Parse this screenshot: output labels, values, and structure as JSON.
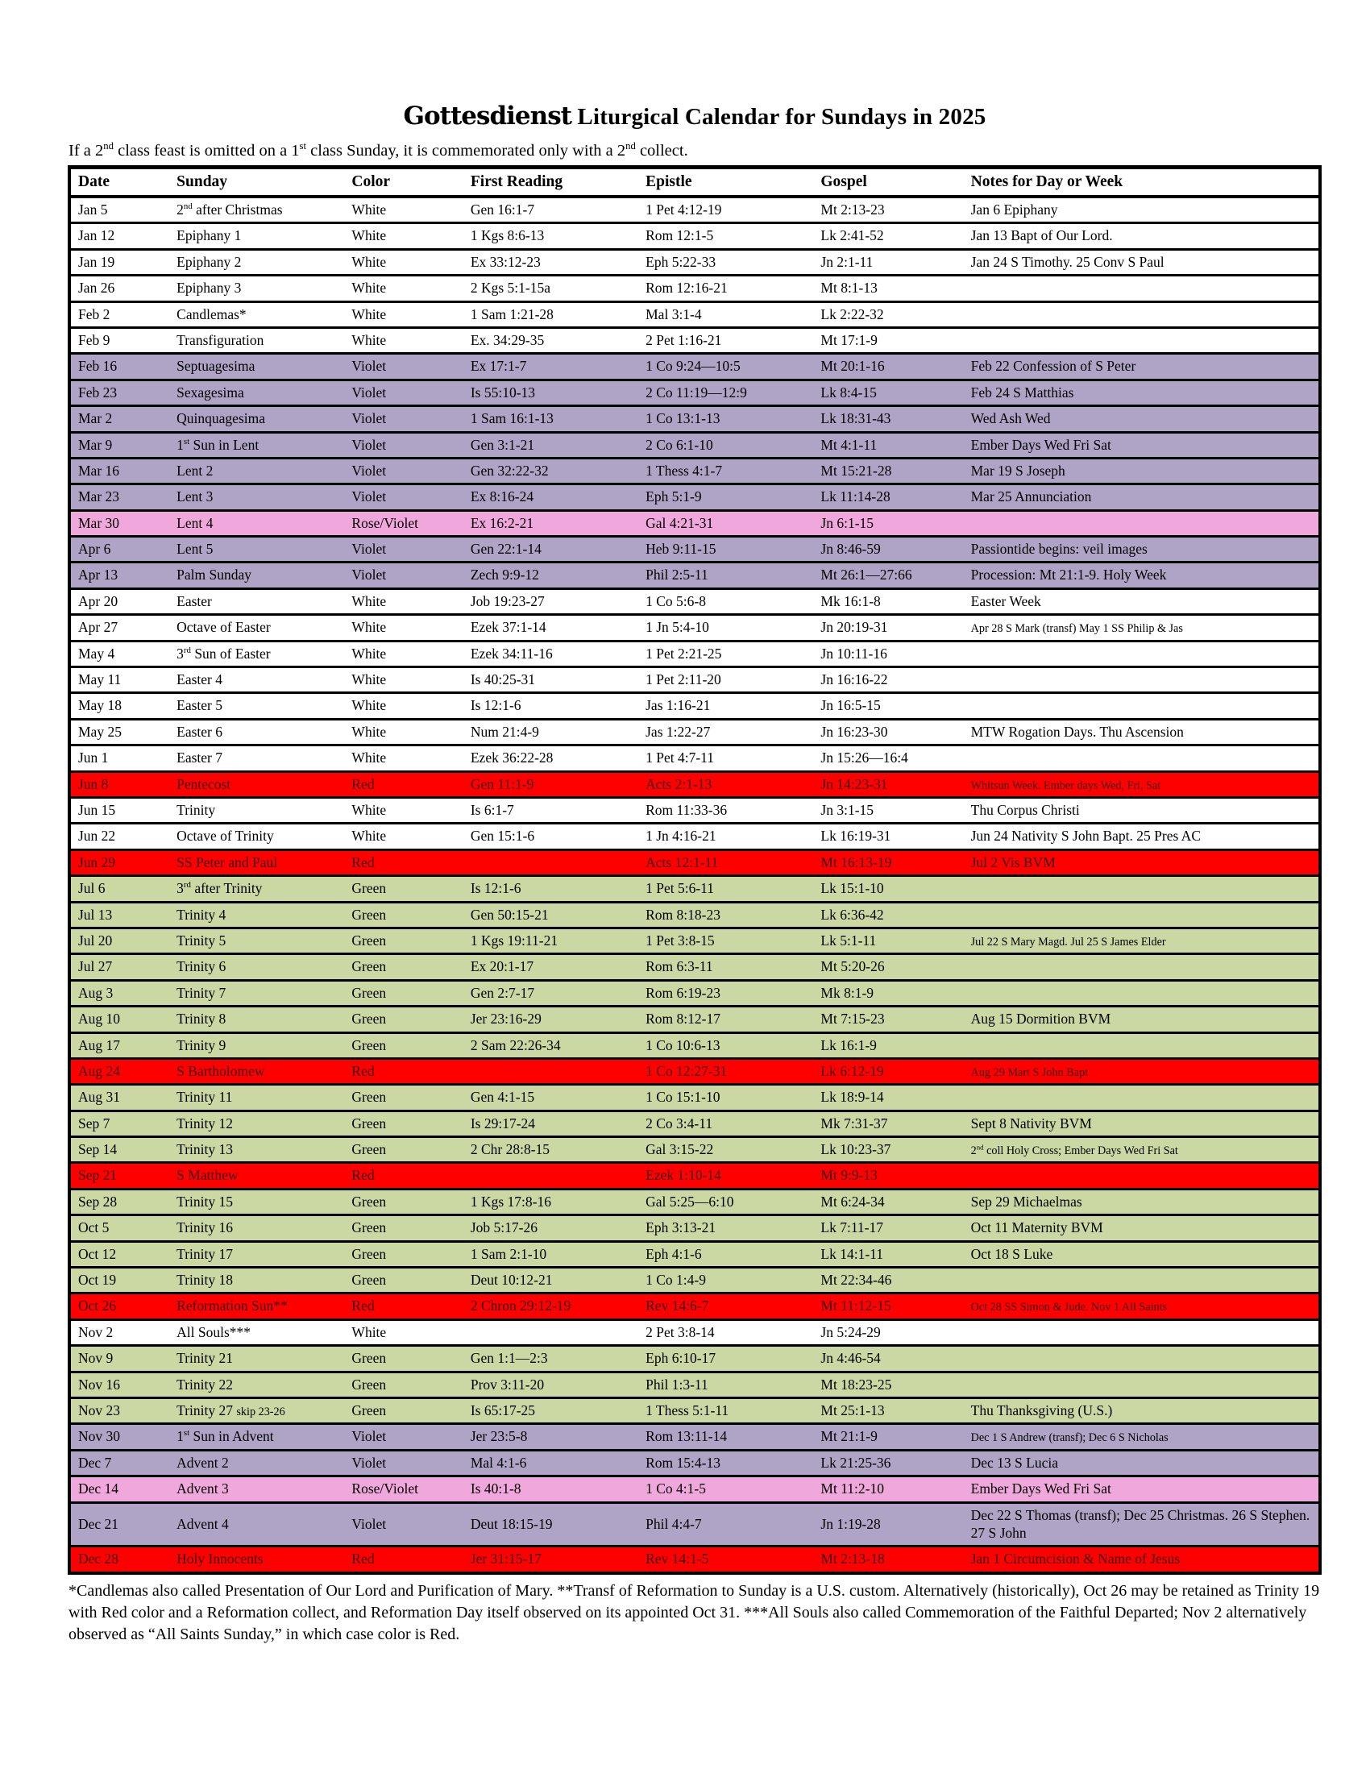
{
  "header": {
    "masthead": "Gottesdienst",
    "title_rest": " Liturgical Calendar for Sundays in 2025",
    "subtitle": "If a 2^nd^ class feast is omitted on a 1^st^ class Sunday, it is commemorated only with a 2^nd^ collect."
  },
  "colors": {
    "row_backgrounds": {
      "white": "#ffffff",
      "violet": "#afa4c6",
      "rose": "#f0a8dc",
      "red": "#ff0000",
      "green": "#ccd8a4"
    },
    "red_row_text": "#3d0c0c",
    "default_text": "#000000",
    "grid_line": "#000000"
  },
  "table": {
    "columns": [
      {
        "key": "date",
        "label": "Date"
      },
      {
        "key": "sunday",
        "label": "Sunday"
      },
      {
        "key": "color",
        "label": "Color"
      },
      {
        "key": "first_reading",
        "label": "First Reading"
      },
      {
        "key": "epistle",
        "label": "Epistle"
      },
      {
        "key": "gospel",
        "label": "Gospel"
      },
      {
        "key": "notes",
        "label": "Notes for Day or Week"
      }
    ],
    "rows": [
      {
        "date": "Jan 5",
        "sunday": "2^nd^ after Christmas",
        "color": "White",
        "first_reading": "Gen 16:1-7",
        "epistle": "1 Pet 4:12-19",
        "gospel": "Mt 2:13-23",
        "notes": "Jan 6 Epiphany",
        "bg": "white"
      },
      {
        "date": "Jan 12",
        "sunday": "Epiphany 1",
        "color": "White",
        "first_reading": "1 Kgs 8:6-13",
        "epistle": "Rom 12:1-5",
        "gospel": "Lk 2:41-52",
        "notes": "Jan 13 Bapt of Our Lord.",
        "bg": "white"
      },
      {
        "date": "Jan 19",
        "sunday": "Epiphany 2",
        "color": "White",
        "first_reading": "Ex 33:12-23",
        "epistle": "Eph 5:22-33",
        "gospel": "Jn 2:1-11",
        "notes": "Jan 24 S Timothy. 25 Conv S Paul",
        "bg": "white"
      },
      {
        "date": "Jan 26",
        "sunday": "Epiphany 3",
        "color": "White",
        "first_reading": "2 Kgs 5:1-15a",
        "epistle": "Rom 12:16-21",
        "gospel": "Mt 8:1-13",
        "notes": "",
        "bg": "white"
      },
      {
        "date": "Feb 2",
        "sunday": "Candlemas*",
        "color": "White",
        "first_reading": "1 Sam 1:21-28",
        "epistle": "Mal 3:1-4",
        "gospel": "Lk 2:22-32",
        "notes": "",
        "bg": "white"
      },
      {
        "date": "Feb 9",
        "sunday": "Transfiguration",
        "color": "White",
        "first_reading": "Ex. 34:29-35",
        "epistle": "2 Pet 1:16-21",
        "gospel": "Mt 17:1-9",
        "notes": "",
        "bg": "white"
      },
      {
        "date": "Feb 16",
        "sunday": "Septuagesima",
        "color": "Violet",
        "first_reading": "Ex 17:1-7",
        "epistle": "1 Co 9:24—10:5",
        "gospel": "Mt 20:1-16",
        "notes": "Feb 22 Confession of S Peter",
        "bg": "violet"
      },
      {
        "date": "Feb 23",
        "sunday": "Sexagesima",
        "color": "Violet",
        "first_reading": "Is 55:10-13",
        "epistle": "2 Co 11:19—12:9",
        "gospel": "Lk 8:4-15",
        "notes": "Feb 24 S Matthias",
        "bg": "violet"
      },
      {
        "date": "Mar 2",
        "sunday": "Quinquagesima",
        "color": "Violet",
        "first_reading": "1 Sam 16:1-13",
        "epistle": "1 Co 13:1-13",
        "gospel": "Lk 18:31-43",
        "notes": "Wed Ash Wed",
        "bg": "violet"
      },
      {
        "date": "Mar 9",
        "sunday": "1^st^ Sun in Lent",
        "color": "Violet",
        "first_reading": "Gen 3:1-21",
        "epistle": "2 Co 6:1-10",
        "gospel": "Mt 4:1-11",
        "notes": "Ember Days Wed Fri Sat",
        "bg": "violet"
      },
      {
        "date": "Mar 16",
        "sunday": "Lent 2",
        "color": "Violet",
        "first_reading": "Gen 32:22-32",
        "epistle": "1 Thess 4:1-7",
        "gospel": "Mt 15:21-28",
        "notes": "Mar 19 S Joseph",
        "bg": "violet"
      },
      {
        "date": "Mar 23",
        "sunday": "Lent 3",
        "color": "Violet",
        "first_reading": "Ex 8:16-24",
        "epistle": "Eph 5:1-9",
        "gospel": "Lk 11:14-28",
        "notes": "Mar 25 Annunciation",
        "bg": "violet"
      },
      {
        "date": "Mar 30",
        "sunday": "Lent 4",
        "color": "Rose/Violet",
        "first_reading": "Ex 16:2-21",
        "epistle": "Gal 4:21-31",
        "gospel": "Jn 6:1-15",
        "notes": "",
        "bg": "rose"
      },
      {
        "date": "Apr 6",
        "sunday": "Lent 5",
        "color": "Violet",
        "first_reading": "Gen 22:1-14",
        "epistle": "Heb 9:11-15",
        "gospel": "Jn 8:46-59",
        "notes": "Passiontide begins: veil images",
        "bg": "violet"
      },
      {
        "date": "Apr 13",
        "sunday": "Palm Sunday",
        "color": "Violet",
        "first_reading": "Zech 9:9-12",
        "epistle": "Phil 2:5-11",
        "gospel": "Mt 26:1—27:66",
        "notes": "Procession: Mt 21:1-9. Holy Week",
        "bg": "violet"
      },
      {
        "date": "Apr 20",
        "sunday": "Easter",
        "color": "White",
        "first_reading": "Job 19:23-27",
        "epistle": "1 Co 5:6-8",
        "gospel": "Mk 16:1-8",
        "notes": "Easter Week",
        "bg": "white"
      },
      {
        "date": "Apr 27",
        "sunday": "Octave of Easter",
        "color": "White",
        "first_reading": "Ezek 37:1-14",
        "epistle": "1 Jn 5:4-10",
        "gospel": "Jn 20:19-31",
        "notes": "~Apr 28 S Mark (transf) May 1 SS Philip & Jas~",
        "bg": "white"
      },
      {
        "date": "May 4",
        "sunday": "3^rd^ Sun of Easter",
        "color": "White",
        "first_reading": "Ezek 34:11-16",
        "epistle": "1 Pet 2:21-25",
        "gospel": "Jn 10:11-16",
        "notes": "",
        "bg": "white"
      },
      {
        "date": "May 11",
        "sunday": "Easter 4",
        "color": "White",
        "first_reading": "Is 40:25-31",
        "epistle": "1 Pet 2:11-20",
        "gospel": "Jn 16:16-22",
        "notes": "",
        "bg": "white"
      },
      {
        "date": "May 18",
        "sunday": "Easter 5",
        "color": "White",
        "first_reading": "Is 12:1-6",
        "epistle": "Jas 1:16-21",
        "gospel": "Jn 16:5-15",
        "notes": "",
        "bg": "white"
      },
      {
        "date": "May 25",
        "sunday": "Easter 6",
        "color": "White",
        "first_reading": "Num 21:4-9",
        "epistle": "Jas 1:22-27",
        "gospel": "Jn 16:23-30",
        "notes": "MTW Rogation Days. Thu Ascension",
        "bg": "white"
      },
      {
        "date": "Jun 1",
        "sunday": "Easter 7",
        "color": "White",
        "first_reading": "Ezek 36:22-28",
        "epistle": "1 Pet 4:7-11",
        "gospel": "Jn 15:26—16:4",
        "notes": "",
        "bg": "white"
      },
      {
        "date": "Jun 8",
        "sunday": "Pentecost",
        "color": "Red",
        "first_reading": "Gen 11:1-9",
        "epistle": "Acts 2:1-13",
        "gospel": "Jn 14:23-31",
        "notes": "~Whitsun Week. Ember days Wed, Fri, Sat~",
        "bg": "red"
      },
      {
        "date": "Jun 15",
        "sunday": "Trinity",
        "color": "White",
        "first_reading": "Is 6:1-7",
        "epistle": "Rom 11:33-36",
        "gospel": "Jn 3:1-15",
        "notes": "Thu Corpus Christi",
        "bg": "white"
      },
      {
        "date": "Jun 22",
        "sunday": "Octave of Trinity",
        "color": "White",
        "first_reading": "Gen 15:1-6",
        "epistle": "1 Jn 4:16-21",
        "gospel": "Lk 16:19-31",
        "notes": "Jun 24 Nativity S John Bapt. 25 Pres AC",
        "bg": "white"
      },
      {
        "date": "Jun 29",
        "sunday": "SS Peter and Paul",
        "color": "Red",
        "first_reading": "",
        "epistle": "Acts 12:1-11",
        "gospel": "Mt 16:13-19",
        "notes": "Jul 2 Vis BVM",
        "bg": "red"
      },
      {
        "date": "Jul 6",
        "sunday": "3^rd^ after Trinity",
        "color": "Green",
        "first_reading": "Is 12:1-6",
        "epistle": "1 Pet 5:6-11",
        "gospel": "Lk 15:1-10",
        "notes": "",
        "bg": "green"
      },
      {
        "date": "Jul 13",
        "sunday": "Trinity 4",
        "color": "Green",
        "first_reading": "Gen 50:15-21",
        "epistle": "Rom 8:18-23",
        "gospel": "Lk 6:36-42",
        "notes": "",
        "bg": "green"
      },
      {
        "date": "Jul 20",
        "sunday": "Trinity 5",
        "color": "Green",
        "first_reading": "1 Kgs 19:11-21",
        "epistle": "1 Pet 3:8-15",
        "gospel": "Lk 5:1-11",
        "notes": "~Jul 22 S Mary Magd. Jul 25 S James Elder~",
        "bg": "green"
      },
      {
        "date": "Jul 27",
        "sunday": "Trinity 6",
        "color": "Green",
        "first_reading": "Ex 20:1-17",
        "epistle": "Rom 6:3-11",
        "gospel": "Mt 5:20-26",
        "notes": "",
        "bg": "green"
      },
      {
        "date": "Aug 3",
        "sunday": "Trinity 7",
        "color": "Green",
        "first_reading": "Gen 2:7-17",
        "epistle": "Rom 6:19-23",
        "gospel": "Mk 8:1-9",
        "notes": "",
        "bg": "green"
      },
      {
        "date": "Aug 10",
        "sunday": "Trinity 8",
        "color": "Green",
        "first_reading": "Jer 23:16-29",
        "epistle": "Rom 8:12-17",
        "gospel": "Mt 7:15-23",
        "notes": "Aug 15 Dormition BVM",
        "bg": "green"
      },
      {
        "date": "Aug 17",
        "sunday": "Trinity 9",
        "color": "Green",
        "first_reading": "2 Sam 22:26-34",
        "epistle": "1 Co 10:6-13",
        "gospel": "Lk 16:1-9",
        "notes": "",
        "bg": "green"
      },
      {
        "date": "Aug 24",
        "sunday": "S Bartholomew",
        "color": "Red",
        "first_reading": "",
        "epistle": "1 Co 12:27-31",
        "gospel": "Lk 6:12-19",
        "notes": "~Aug 29 Mart S John Bapt~",
        "bg": "red"
      },
      {
        "date": "Aug 31",
        "sunday": "Trinity 11",
        "color": "Green",
        "first_reading": "Gen 4:1-15",
        "epistle": "1 Co 15:1-10",
        "gospel": "Lk 18:9-14",
        "notes": "",
        "bg": "green"
      },
      {
        "date": "Sep 7",
        "sunday": "Trinity 12",
        "color": "Green",
        "first_reading": "Is 29:17-24",
        "epistle": "2 Co 3:4-11",
        "gospel": "Mk 7:31-37",
        "notes": "Sept 8 Nativity BVM",
        "bg": "green"
      },
      {
        "date": "Sep 14",
        "sunday": "Trinity 13",
        "color": "Green",
        "first_reading": "2 Chr 28:8-15",
        "epistle": "Gal 3:15-22",
        "gospel": "Lk 10:23-37",
        "notes": "~2^nd^ coll Holy Cross; Ember Days Wed Fri Sat~",
        "bg": "green"
      },
      {
        "date": "Sep 21",
        "sunday": "S Matthew",
        "color": "Red",
        "first_reading": "",
        "epistle": "Ezek 1:10-14",
        "gospel": "Mt 9:9-13",
        "notes": "",
        "bg": "red"
      },
      {
        "date": "Sep 28",
        "sunday": "Trinity 15",
        "color": "Green",
        "first_reading": "1 Kgs 17:8-16",
        "epistle": "Gal 5:25—6:10",
        "gospel": "Mt 6:24-34",
        "notes": "Sep 29 Michaelmas",
        "bg": "green"
      },
      {
        "date": "Oct 5",
        "sunday": "Trinity 16",
        "color": "Green",
        "first_reading": "Job 5:17-26",
        "epistle": "Eph 3:13-21",
        "gospel": "Lk 7:11-17",
        "notes": "Oct 11 Maternity BVM",
        "bg": "green"
      },
      {
        "date": "Oct 12",
        "sunday": "Trinity 17",
        "color": "Green",
        "first_reading": "1 Sam 2:1-10",
        "epistle": "Eph 4:1-6",
        "gospel": "Lk 14:1-11",
        "notes": "Oct 18 S Luke",
        "bg": "green"
      },
      {
        "date": "Oct 19",
        "sunday": "Trinity 18",
        "color": "Green",
        "first_reading": "Deut 10:12-21",
        "epistle": "1 Co 1:4-9",
        "gospel": "Mt 22:34-46",
        "notes": "",
        "bg": "green"
      },
      {
        "date": "Oct 26",
        "sunday": "Reformation Sun**",
        "color": "Red",
        "first_reading": "2 Chron 29:12-19",
        "epistle": "Rev 14:6-7",
        "gospel": "Mt 11:12-15",
        "notes": "~Oct 28 SS Simon & Jude. Nov 1 All Saints~",
        "bg": "red"
      },
      {
        "date": "Nov 2",
        "sunday": "All Souls***",
        "color": "White",
        "first_reading": "",
        "epistle": "2 Pet 3:8-14",
        "gospel": "Jn 5:24-29",
        "notes": "",
        "bg": "white"
      },
      {
        "date": "Nov 9",
        "sunday": "Trinity 21",
        "color": "Green",
        "first_reading": "Gen 1:1—2:3",
        "epistle": "Eph 6:10-17",
        "gospel": "Jn 4:46-54",
        "notes": "",
        "bg": "green"
      },
      {
        "date": "Nov 16",
        "sunday": "Trinity 22",
        "color": "Green",
        "first_reading": "Prov 3:11-20",
        "epistle": "Phil 1:3-11",
        "gospel": "Mt 18:23-25",
        "notes": "",
        "bg": "green"
      },
      {
        "date": "Nov 23",
        "sunday": "Trinity 27 ~skip 23-26~",
        "color": "Green",
        "first_reading": "Is 65:17-25",
        "epistle": "1 Thess 5:1-11",
        "gospel": "Mt 25:1-13",
        "notes": "Thu Thanksgiving (U.S.)",
        "bg": "green"
      },
      {
        "date": "Nov 30",
        "sunday": "1^st^ Sun in Advent",
        "color": "Violet",
        "first_reading": "Jer 23:5-8",
        "epistle": "Rom 13:11-14",
        "gospel": "Mt 21:1-9",
        "notes": "~Dec 1 S Andrew (transf); Dec 6 S Nicholas~",
        "bg": "violet"
      },
      {
        "date": "Dec 7",
        "sunday": "Advent 2",
        "color": "Violet",
        "first_reading": "Mal 4:1-6",
        "epistle": "Rom 15:4-13",
        "gospel": "Lk 21:25-36",
        "notes": "Dec 13 S Lucia",
        "bg": "violet"
      },
      {
        "date": "Dec 14",
        "sunday": "Advent 3",
        "color": "Rose/Violet",
        "first_reading": "Is 40:1-8",
        "epistle": "1 Co 4:1-5",
        "gospel": "Mt 11:2-10",
        "notes": "Ember Days Wed Fri Sat",
        "bg": "rose"
      },
      {
        "date": "Dec 21",
        "sunday": "Advent 4",
        "color": "Violet",
        "first_reading": "Deut 18:15-19",
        "epistle": "Phil 4:4-7",
        "gospel": "Jn 1:19-28",
        "notes": "Dec 22 S Thomas (transf); Dec 25 Christmas. 26 S Stephen. 27 S John",
        "bg": "violet"
      },
      {
        "date": "Dec 28",
        "sunday": "Holy Innocents",
        "color": "Red",
        "first_reading": "Jer 31:15-17",
        "epistle": "Rev 14:1-5",
        "gospel": "Mt 2:13-18",
        "notes": "Jan 1 Circumcision & Name of Jesus",
        "bg": "red"
      }
    ]
  },
  "footnote": "*Candlemas also called Presentation of Our Lord and Purification of Mary. **Transf of Reformation to Sunday is a U.S. custom. Alternatively (historically), Oct 26 may be retained as Trinity 19 with Red color and a Reformation collect, and Reformation Day itself observed on its appointed Oct 31. ***All Souls also called Commemoration of the Faithful Departed; Nov 2 alternatively observed as “All Saints Sunday,” in which case color is Red."
}
